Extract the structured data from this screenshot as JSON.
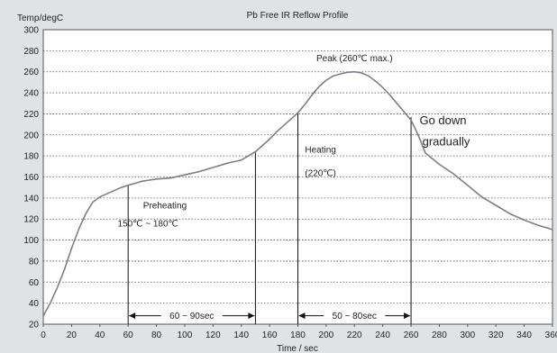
{
  "chart_data": {
    "type": "line",
    "title": "Pb Free IR Reflow Profile",
    "ylabel": "Temp/degC",
    "xlabel": "Time / sec",
    "xlim": [
      0,
      360
    ],
    "ylim": [
      20,
      300
    ],
    "x_ticks": [
      0,
      20,
      40,
      60,
      80,
      100,
      120,
      140,
      160,
      180,
      200,
      220,
      240,
      260,
      280,
      300,
      320,
      340,
      360
    ],
    "y_ticks": [
      20,
      40,
      60,
      80,
      100,
      120,
      140,
      160,
      180,
      200,
      220,
      240,
      260,
      280,
      300
    ],
    "grid": true,
    "series": [
      {
        "x": [
          0,
          5,
          10,
          15,
          20,
          25,
          30,
          35,
          40,
          45,
          50,
          55,
          60,
          65,
          70,
          75,
          80,
          90,
          100,
          110,
          120,
          130,
          140,
          145,
          150,
          155,
          160,
          165,
          170,
          175,
          180,
          185,
          190,
          195,
          200,
          205,
          210,
          215,
          220,
          225,
          230,
          235,
          240,
          245,
          250,
          255,
          260,
          265,
          270,
          280,
          290,
          300,
          310,
          320,
          330,
          340,
          350,
          360
        ],
        "y": [
          28,
          40,
          55,
          72,
          92,
          110,
          125,
          136,
          141,
          144,
          147,
          150,
          152,
          154,
          156,
          157,
          158,
          159,
          162,
          165,
          169,
          173,
          176,
          180,
          184,
          190,
          196,
          203,
          209,
          215,
          221,
          229,
          238,
          246,
          252,
          256,
          258,
          259.5,
          260,
          259,
          256,
          251,
          245,
          238,
          230,
          222,
          214,
          200,
          183,
          172,
          163,
          152,
          141,
          133,
          125,
          119,
          114,
          110
        ]
      }
    ],
    "vertical_lines": [
      {
        "x": 60,
        "y_top": 152
      },
      {
        "x": 150,
        "y_top": 184
      },
      {
        "x": 180,
        "y_top": 221
      },
      {
        "x": 260,
        "y_top": 217
      }
    ],
    "spans": [
      {
        "x_start": 60,
        "x_end": 150,
        "y": 28,
        "label": "60 ~ 90sec"
      },
      {
        "x_start": 180,
        "x_end": 260,
        "y": 28,
        "label": "50 ~ 80sec"
      }
    ],
    "annotations": [
      {
        "x": 86,
        "y": 130,
        "text": "Preheating",
        "size": "normal"
      },
      {
        "x": 74,
        "y": 113,
        "text": "150℃ ~ 180℃",
        "size": "normal"
      },
      {
        "x": 220,
        "y": 270,
        "text": "Peak (260℃ max.)",
        "size": "normal"
      },
      {
        "x": 196,
        "y": 183,
        "text": "Heating",
        "size": "normal"
      },
      {
        "x": 196,
        "y": 161,
        "text": "(220℃)",
        "size": "normal"
      },
      {
        "x": 266,
        "y": 210,
        "text": "Go down",
        "size": "big"
      },
      {
        "x": 268,
        "y": 190,
        "text": "gradually",
        "size": "big"
      }
    ]
  }
}
